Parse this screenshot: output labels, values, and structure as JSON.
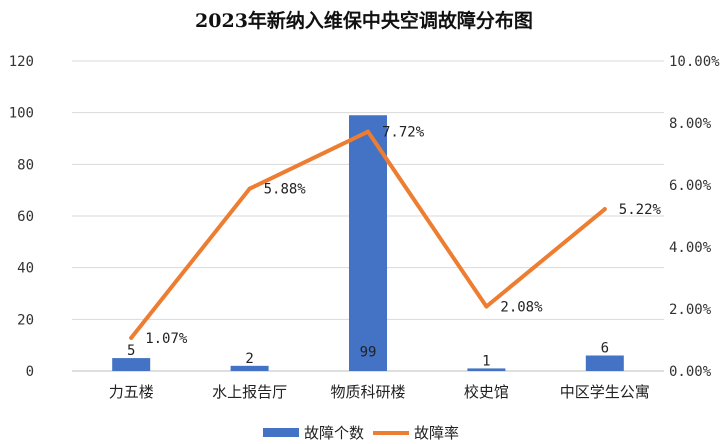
{
  "chart_data": {
    "type": "bar",
    "title": "2023年新纳入维保中央空调故障分布图",
    "categories": [
      "力五楼",
      "水上报告厅",
      "物质科研楼",
      "校史馆",
      "中区学生公寓"
    ],
    "series": [
      {
        "name": "故障个数",
        "type": "bar",
        "axis": "left",
        "color": "#4472C4",
        "values": [
          5,
          2,
          99,
          1,
          6
        ]
      },
      {
        "name": "故障率",
        "type": "line",
        "axis": "right",
        "color": "#ED7D31",
        "values": [
          1.07,
          5.88,
          7.72,
          2.08,
          5.22
        ],
        "labels": [
          "1.07%",
          "5.88%",
          "7.72%",
          "2.08%",
          "5.22%"
        ]
      }
    ],
    "y_left": {
      "min": 0,
      "max": 120,
      "step": 20,
      "ticks": [
        "0",
        "20",
        "40",
        "60",
        "80",
        "100",
        "120"
      ]
    },
    "y_right": {
      "min": 0,
      "max": 10,
      "step": 2,
      "ticks": [
        "0.00%",
        "2.00%",
        "4.00%",
        "6.00%",
        "8.00%",
        "10.00%"
      ]
    },
    "grid": true,
    "legend_position": "bottom"
  }
}
